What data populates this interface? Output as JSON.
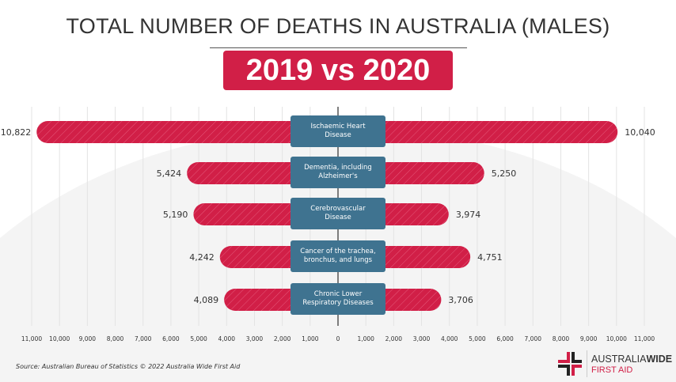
{
  "header": {
    "title": "TOTAL NUMBER OF DEATHS IN AUSTRALIA (MALES)",
    "badge": "2019 vs 2020"
  },
  "footer": {
    "source": "Source: Australian Bureau of Statistics © 2022 Australia Wide First Aid",
    "logo_text_1": "AUSTRALIA",
    "logo_text_1b": "WIDE",
    "logo_text_2": "FIRST AID"
  },
  "colors": {
    "bar": "#d11f47",
    "category_box": "#3f7390",
    "accent": "#d11f47"
  },
  "chart_data": {
    "type": "bar",
    "orientation": "horizontal-butterfly",
    "title": "TOTAL NUMBER OF DEATHS IN AUSTRALIA (MALES)",
    "subtitle": "2019 vs 2020",
    "categories": [
      "Ischaemic Heart Disease",
      "Dementia, including Alzheimer's",
      "Cerebrovascular Disease",
      "Cancer of the trachea, bronchus, and lungs",
      "Chronic Lower Respiratory Diseases"
    ],
    "category_lines": [
      [
        "Ischaemic Heart",
        "Disease"
      ],
      [
        "Dementia, including",
        "Alzheimer's"
      ],
      [
        "Cerebrovascular",
        "Disease"
      ],
      [
        "Cancer of the trachea,",
        "bronchus, and lungs"
      ],
      [
        "Chronic Lower",
        "Respiratory Diseases"
      ]
    ],
    "series": [
      {
        "side": "left",
        "values": [
          10822,
          5424,
          5190,
          4242,
          4089
        ],
        "labels": [
          "10,822",
          "5,424",
          "5,190",
          "4,242",
          "4,089"
        ]
      },
      {
        "side": "right",
        "values": [
          10040,
          5250,
          3974,
          4751,
          3706
        ],
        "labels": [
          "10,040",
          "5,250",
          "3,974",
          "4,751",
          "3,706"
        ]
      }
    ],
    "xlim": [
      -11000,
      11000
    ],
    "xticks": [
      "11,000",
      "10,000",
      "9,000",
      "8,000",
      "7,000",
      "6,000",
      "5,000",
      "4,000",
      "3,000",
      "2,000",
      "1,000",
      "0",
      "1,000",
      "2,000",
      "3,000",
      "4,000",
      "5,000",
      "6,000",
      "7,000",
      "8,000",
      "9,000",
      "10,000",
      "11,000"
    ],
    "grid": true,
    "legend": "none"
  }
}
